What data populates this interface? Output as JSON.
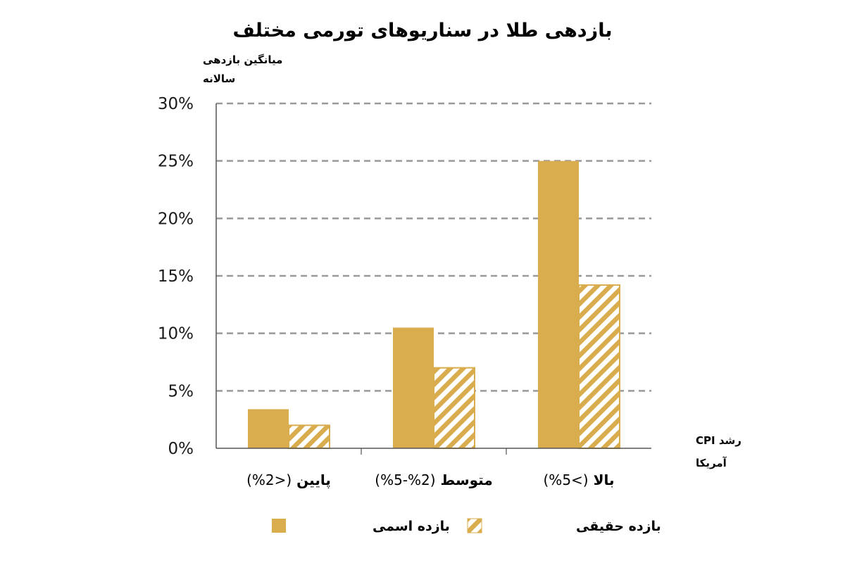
{
  "chart_data": {
    "type": "bar",
    "title": "بازدهی طلا در سناریوهای تورمی مختلف",
    "ylabel_lines": [
      "میانگین بازدهی",
      "سالانه"
    ],
    "xlabel_lines": [
      "رشد CPI",
      "آمریکا"
    ],
    "y_ticks": [
      "0%",
      "5%",
      "10%",
      "15%",
      "20%",
      "25%",
      "30%"
    ],
    "ylim": [
      0,
      30
    ],
    "grid": true,
    "legend_position": "bottom",
    "categories": [
      {
        "name": "پایین",
        "range": "(<2%)"
      },
      {
        "name": "متوسط",
        "range": "(2%-5%)"
      },
      {
        "name": "بالا",
        "range": "(>5%)"
      }
    ],
    "series": [
      {
        "name": "بازده اسمی",
        "style": "solid",
        "values": [
          3.4,
          10.5,
          25.0
        ]
      },
      {
        "name": "بازده حقیقی",
        "style": "hatched",
        "values": [
          2.0,
          7.0,
          14.2
        ]
      }
    ]
  },
  "colors": {
    "bar": "#d9ac4d",
    "grid": "#999999",
    "axis": "#555555",
    "text": "#1a1a1a"
  }
}
